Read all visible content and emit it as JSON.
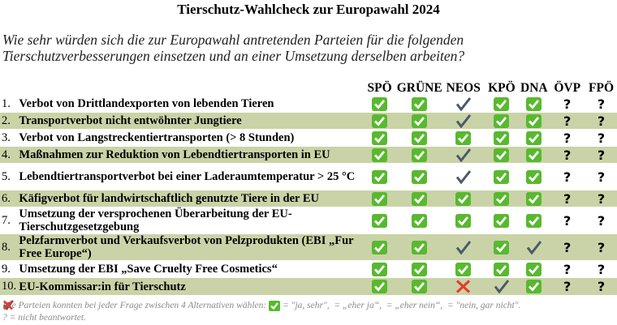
{
  "title": "Tierschutz-Wahlcheck zur Europawahl 2024",
  "question": "Wie sehr würden sich die zur Europawahl antretenden Parteien für die folgenden Tierschutzverbesserungen einsetzen und an einer Umsetzung derselben arbeiten?",
  "parties": [
    "SPÖ",
    "GRÜNE",
    "NEOS",
    "KPÖ",
    "DNA",
    "ÖVP",
    "FPÖ"
  ],
  "rows": [
    {
      "num": "1.",
      "label": "Verbot von Drittlandexporten von lebenden Tieren",
      "marks": [
        "ja",
        "ja",
        "eherja",
        "ja",
        "ja",
        "?",
        "?"
      ]
    },
    {
      "num": "2.",
      "label": "Transportverbot nicht entwöhnter Jungtiere",
      "marks": [
        "ja",
        "ja",
        "eherja",
        "ja",
        "ja",
        "?",
        "?"
      ]
    },
    {
      "num": "3.",
      "label": "Verbot von Langstreckentiertransporten (> 8 Stunden)",
      "marks": [
        "ja",
        "ja",
        "ja",
        "ja",
        "ja",
        "?",
        "?"
      ]
    },
    {
      "num": "4.",
      "label": "Maßnahmen zur Reduktion von Lebendtiertransporten in EU",
      "marks": [
        "ja",
        "ja",
        "eherja",
        "ja",
        "ja",
        "?",
        "?"
      ]
    },
    {
      "num": "5.",
      "label": "Lebendtiertransportverbot bei einer Laderaumtemperatur > 25 °C",
      "marks": [
        "ja",
        "ja",
        "eherja",
        "ja",
        "ja",
        "?",
        "?"
      ]
    },
    {
      "num": "6.",
      "label": "Käfigverbot für landwirtschaftlich genutzte Tiere in der EU",
      "marks": [
        "ja",
        "ja",
        "ja",
        "ja",
        "ja",
        "?",
        "?"
      ]
    },
    {
      "num": "7.",
      "label": "Umsetzung der versprochenen Überarbeitung der EU-Tierschutzgesetzgebung",
      "marks": [
        "ja",
        "ja",
        "ja",
        "ja",
        "ja",
        "?",
        "?"
      ]
    },
    {
      "num": "8.",
      "label": "Pelzfarmverbot und Verkaufsverbot von Pelzprodukten (EBI „Fur Free Europe“)",
      "marks": [
        "ja",
        "ja",
        "eherja",
        "ja",
        "eherja",
        "?",
        "?"
      ]
    },
    {
      "num": "9.",
      "label": "Umsetzung der EBI „Save Cruelty Free Cosmetics“",
      "marks": [
        "ja",
        "ja",
        "ja",
        "ja",
        "ja",
        "?",
        "?"
      ]
    },
    {
      "num": "10.",
      "label": "EU-Kommissar:in für Tierschutz",
      "marks": [
        "ja",
        "ja",
        "nein",
        "eherja",
        "ja",
        "?",
        "?"
      ]
    }
  ],
  "footer": {
    "intro": "Die Parteien konnten bei jeder Frage zwischen 4 Alternativen wählen:",
    "ja": "= \"ja, sehr\",",
    "eherja": "= „eher ja“,",
    "ehernein": "= „eher nein“,",
    "nein": "= \"nein, gar nicht\".",
    "unanswered": "? = nicht beantwortet."
  },
  "colors": {
    "ja": "#58b92f",
    "eherja": "#4a5a6a",
    "nein": "#e53a2a",
    "row_shade": "#c9d3a7"
  }
}
